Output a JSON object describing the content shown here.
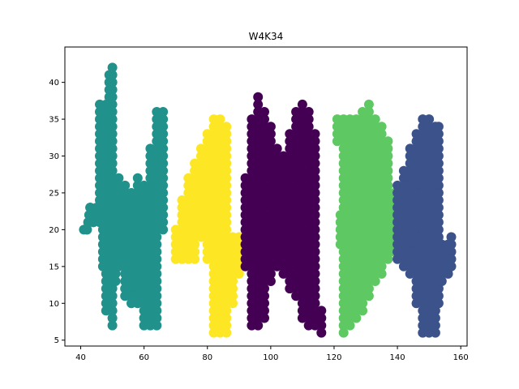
{
  "chart_data": {
    "type": "scatter",
    "title": "W4K34",
    "xlabel": "",
    "ylabel": "",
    "xlim": [
      35,
      162
    ],
    "ylim": [
      4.2,
      44.8
    ],
    "xticks": [
      40,
      60,
      80,
      100,
      120,
      140,
      160
    ],
    "yticks": [
      5,
      10,
      15,
      20,
      25,
      30,
      35,
      40
    ],
    "grid": false,
    "legend": "none",
    "series": [
      {
        "color": "#21918c",
        "letter": "W",
        "strokes": [
          [
            [
              41,
              20
            ],
            [
              42,
              20
            ],
            [
              43,
              23
            ],
            [
              44,
              21
            ],
            [
              45,
              23
            ]
          ],
          [
            [
              46,
              21
            ],
            [
              46,
              37
            ]
          ],
          [
            [
              47,
              21
            ],
            [
              47,
              15
            ]
          ],
          [
            [
              48,
              37
            ],
            [
              48,
              9
            ]
          ],
          [
            [
              49,
              41
            ],
            [
              49,
              21
            ]
          ],
          [
            [
              50,
              42
            ],
            [
              50,
              7
            ]
          ],
          [
            [
              51,
              25
            ],
            [
              51,
              13
            ]
          ],
          [
            [
              52,
              27
            ],
            [
              52,
              15
            ]
          ],
          [
            [
              54,
              26
            ],
            [
              54,
              11
            ]
          ],
          [
            [
              56,
              25
            ],
            [
              56,
              10
            ]
          ],
          [
            [
              58,
              27
            ],
            [
              58,
              10
            ]
          ],
          [
            [
              60,
              26
            ],
            [
              60,
              7
            ]
          ],
          [
            [
              62,
              31
            ],
            [
              62,
              7
            ]
          ],
          [
            [
              64,
              36
            ],
            [
              64,
              7
            ]
          ],
          [
            [
              66,
              36
            ],
            [
              66,
              20
            ]
          ]
        ]
      },
      {
        "color": "#fde725",
        "letter": "4",
        "strokes": [
          [
            [
              70,
              20
            ],
            [
              70,
              16
            ]
          ],
          [
            [
              72,
              24
            ],
            [
              72,
              16
            ]
          ],
          [
            [
              74,
              27
            ],
            [
              74,
              16
            ]
          ],
          [
            [
              76,
              29
            ],
            [
              76,
              16
            ]
          ],
          [
            [
              78,
              31
            ],
            [
              78,
              19
            ]
          ],
          [
            [
              80,
              33
            ],
            [
              80,
              16
            ]
          ],
          [
            [
              82,
              35
            ],
            [
              82,
              6
            ]
          ],
          [
            [
              84,
              35
            ],
            [
              84,
              6
            ]
          ],
          [
            [
              86,
              34
            ],
            [
              86,
              6
            ]
          ],
          [
            [
              88,
              19
            ],
            [
              88,
              10
            ]
          ],
          [
            [
              90,
              19
            ],
            [
              90,
              14
            ]
          ],
          [
            [
              91,
              19
            ],
            [
              91,
              16
            ]
          ]
        ]
      },
      {
        "color": "#440154",
        "letter": "K",
        "strokes": [
          [
            [
              92,
              27
            ],
            [
              92,
              15
            ]
          ],
          [
            [
              94,
              35
            ],
            [
              94,
              7
            ]
          ],
          [
            [
              96,
              38
            ],
            [
              96,
              7
            ]
          ],
          [
            [
              98,
              36
            ],
            [
              98,
              8
            ]
          ],
          [
            [
              100,
              34
            ],
            [
              100,
              13
            ]
          ],
          [
            [
              102,
              31
            ],
            [
              102,
              15
            ]
          ],
          [
            [
              104,
              30
            ],
            [
              104,
              14
            ]
          ],
          [
            [
              106,
              33
            ],
            [
              106,
              12
            ]
          ],
          [
            [
              108,
              36
            ],
            [
              108,
              11
            ]
          ],
          [
            [
              110,
              37
            ],
            [
              110,
              8
            ]
          ],
          [
            [
              112,
              36
            ],
            [
              112,
              7
            ]
          ],
          [
            [
              114,
              33
            ],
            [
              114,
              7
            ]
          ],
          [
            [
              116,
              9
            ],
            [
              116,
              6
            ]
          ]
        ]
      },
      {
        "color": "#5ec962",
        "letter": "3",
        "strokes": [
          [
            [
              121,
              35
            ],
            [
              121,
              32
            ]
          ],
          [
            [
              122,
              22
            ],
            [
              122,
              18
            ]
          ],
          [
            [
              123,
              35
            ],
            [
              123,
              6
            ]
          ],
          [
            [
              125,
              35
            ],
            [
              125,
              7
            ]
          ],
          [
            [
              127,
              35
            ],
            [
              127,
              8
            ]
          ],
          [
            [
              129,
              36
            ],
            [
              129,
              9
            ]
          ],
          [
            [
              131,
              37
            ],
            [
              131,
              11
            ]
          ],
          [
            [
              133,
              35
            ],
            [
              133,
              13
            ]
          ],
          [
            [
              135,
              34
            ],
            [
              135,
              14
            ]
          ],
          [
            [
              137,
              32
            ],
            [
              137,
              16
            ]
          ],
          [
            [
              139,
              25
            ],
            [
              139,
              17
            ]
          ]
        ]
      },
      {
        "color": "#3b528b",
        "letter": "4b",
        "strokes": [
          [
            [
              140,
              26
            ],
            [
              140,
              16
            ]
          ],
          [
            [
              142,
              28
            ],
            [
              142,
              15
            ]
          ],
          [
            [
              144,
              31
            ],
            [
              144,
              14
            ]
          ],
          [
            [
              146,
              33
            ],
            [
              146,
              10
            ]
          ],
          [
            [
              148,
              35
            ],
            [
              148,
              6
            ]
          ],
          [
            [
              150,
              35
            ],
            [
              150,
              6
            ]
          ],
          [
            [
              152,
              34
            ],
            [
              152,
              6
            ]
          ],
          [
            [
              153,
              34
            ],
            [
              153,
              10
            ]
          ],
          [
            [
              154,
              18
            ],
            [
              154,
              13
            ]
          ],
          [
            [
              156,
              18
            ],
            [
              156,
              14
            ]
          ],
          [
            [
              157,
              19
            ],
            [
              157,
              15
            ]
          ]
        ]
      }
    ]
  }
}
